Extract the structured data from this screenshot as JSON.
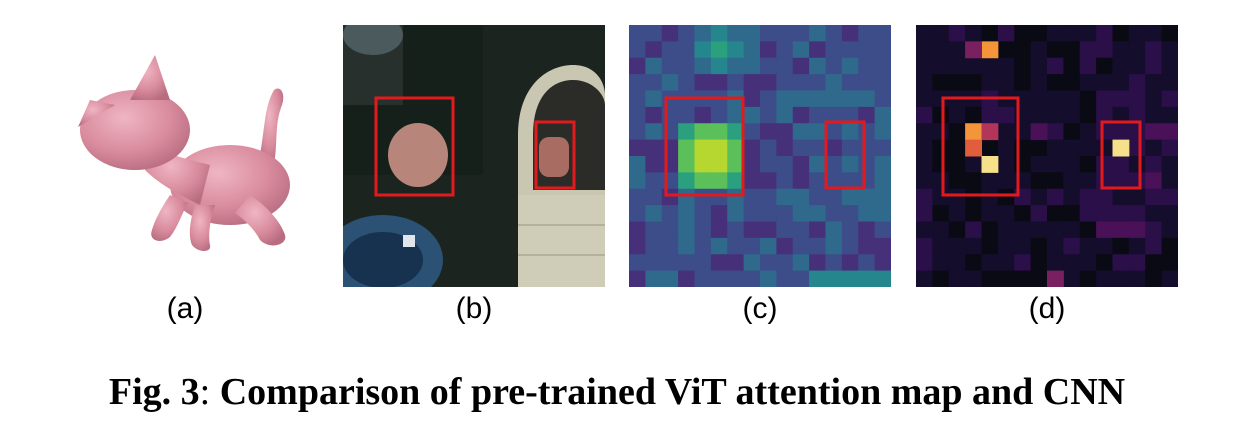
{
  "figure": {
    "panels": [
      {
        "id": "a",
        "label": "(a)",
        "content": "3d-kitten-model"
      },
      {
        "id": "b",
        "label": "(b)",
        "content": "input-image-crop"
      },
      {
        "id": "c",
        "label": "(c)",
        "content": "vit-attention-map"
      },
      {
        "id": "d",
        "label": "(d)",
        "content": "cnn-feature-map"
      }
    ],
    "caption": {
      "prefix": "Fig. 3",
      "separator": ":",
      "text": "Comparison of pre-trained ViT attention map and CNN"
    },
    "colors": {
      "highlight_box": "#e31a1c",
      "kitten_pink": "#d98c9e"
    }
  }
}
